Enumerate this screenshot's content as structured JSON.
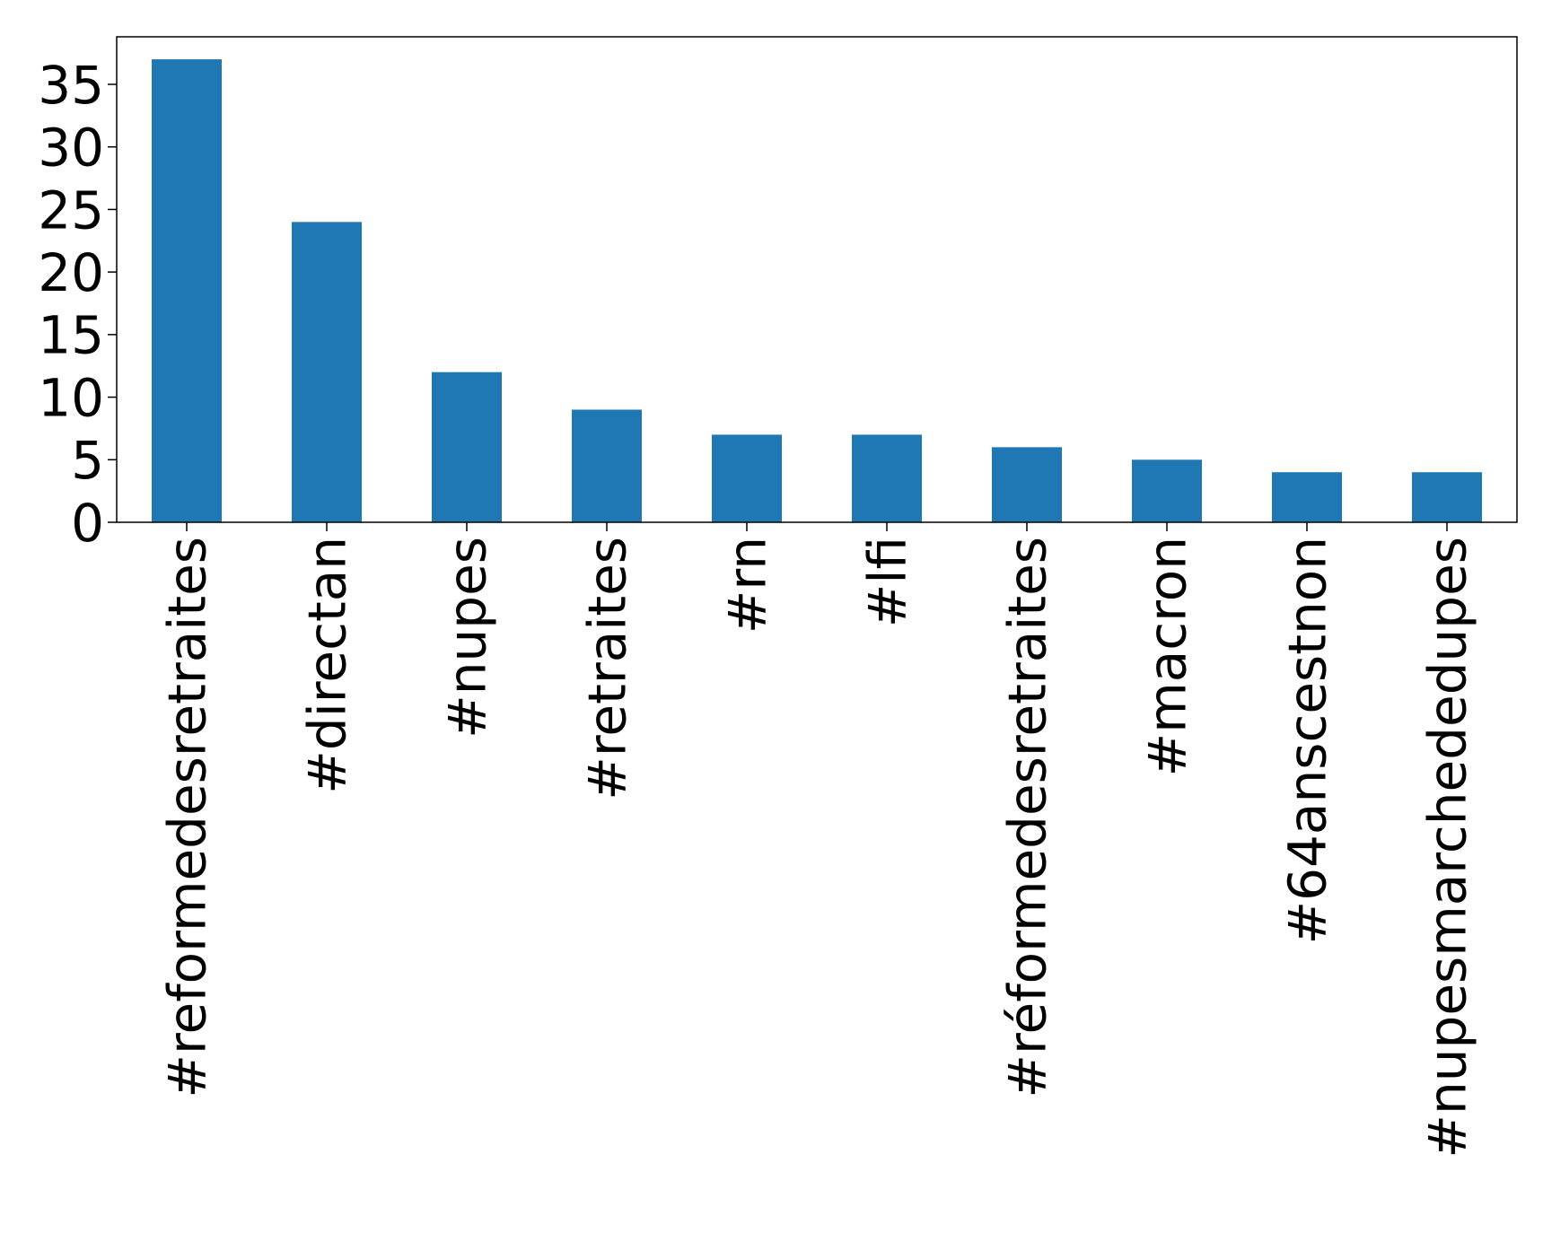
{
  "chart_data": {
    "type": "bar",
    "title": "",
    "xlabel": "",
    "ylabel": "",
    "categories": [
      "#reformedesretraites",
      "#directan",
      "#nupes",
      "#retraites",
      "#rn",
      "#lfi",
      "#réformedesretraites",
      "#macron",
      "#64anscestnon",
      "#nupesmarchededupes"
    ],
    "values": [
      37,
      24,
      12,
      9,
      7,
      7,
      6,
      5,
      4,
      4
    ],
    "ylim": [
      0,
      38.8
    ],
    "yticks": [
      0,
      5,
      10,
      15,
      20,
      25,
      30,
      35
    ],
    "grid": false,
    "legend": "none",
    "bar_color": "#1f77b4"
  }
}
